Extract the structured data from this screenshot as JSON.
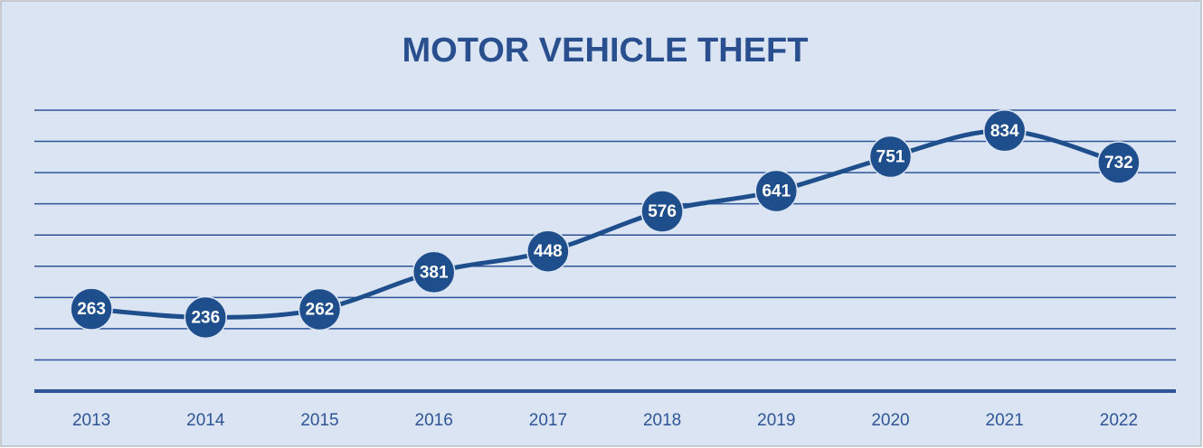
{
  "chart_data": {
    "type": "line",
    "title": "MOTOR VEHICLE THEFT",
    "categories": [
      "2013",
      "2014",
      "2015",
      "2016",
      "2017",
      "2018",
      "2019",
      "2020",
      "2021",
      "2022"
    ],
    "values": [
      263,
      236,
      262,
      381,
      448,
      576,
      641,
      751,
      834,
      732
    ],
    "color": "#1f4e8c",
    "ylim": [
      0,
      900
    ],
    "yticks": [
      0,
      100,
      200,
      300,
      400,
      500,
      600,
      700,
      800,
      900
    ],
    "grid": true,
    "smooth": true
  }
}
